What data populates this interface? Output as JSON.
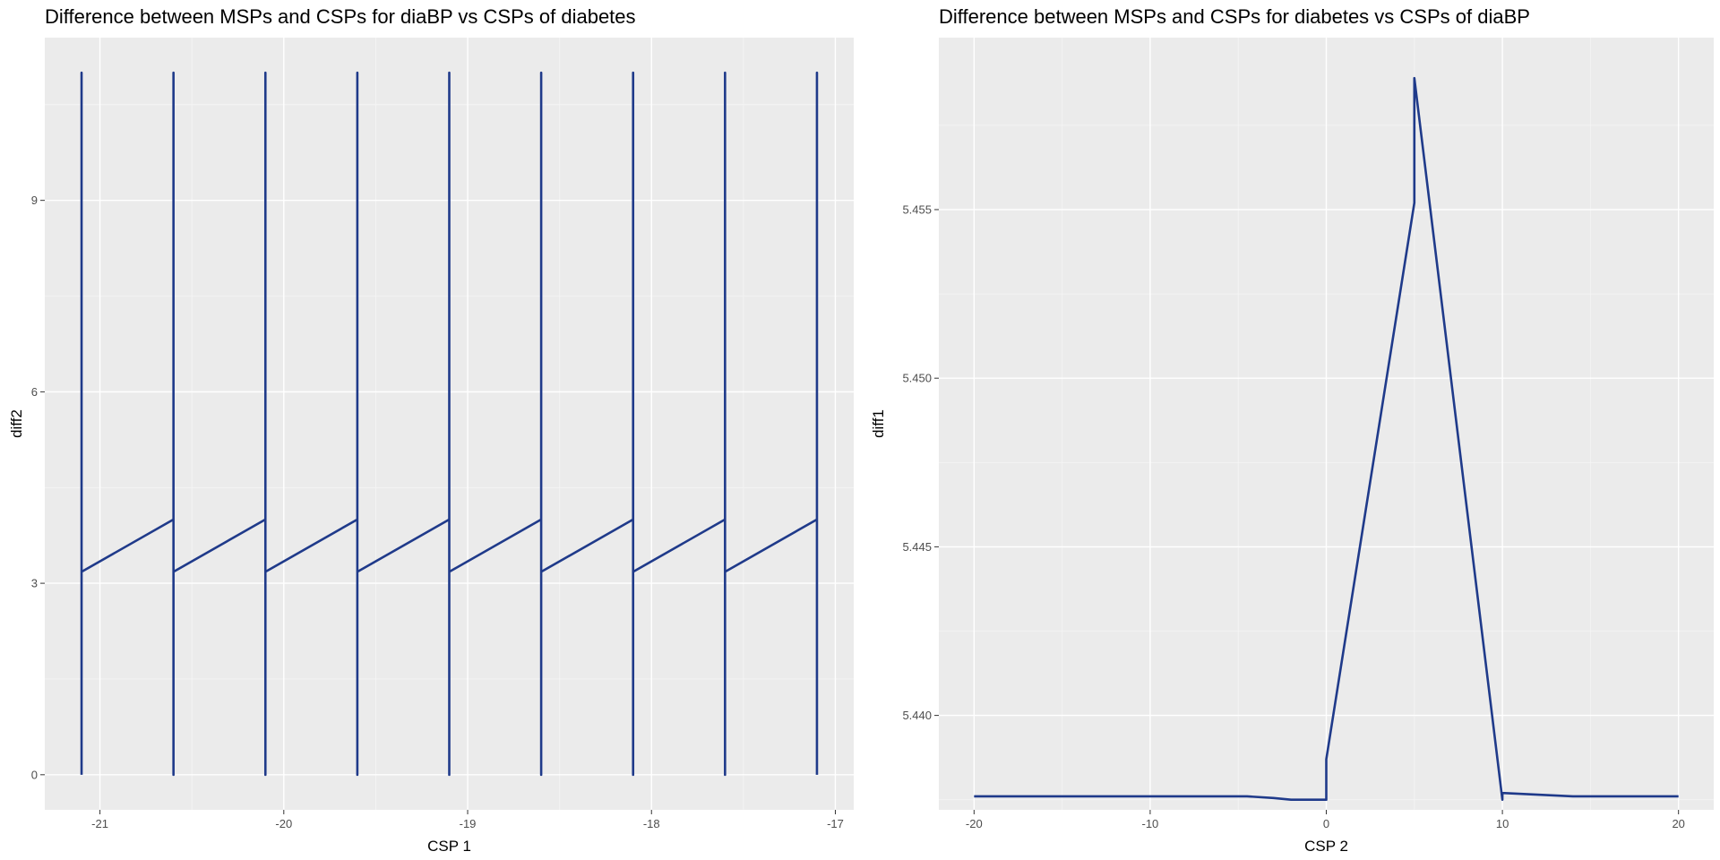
{
  "chart_data": [
    {
      "type": "line",
      "title": "Difference between MSPs and CSPs for diaBP vs CSPs of diabetes",
      "xlabel": "CSP 1",
      "ylabel": "diff2",
      "xlim": [
        -21.3,
        -16.9
      ],
      "ylim": [
        -0.55,
        11.55
      ],
      "xticks": [
        -21,
        -20,
        -19,
        -18,
        -17
      ],
      "xtick_labels": [
        "-21",
        "-20",
        "-19",
        "-18",
        "-17"
      ],
      "yticks": [
        0,
        3,
        6,
        9
      ],
      "ytick_labels": [
        "0",
        "3",
        "6",
        "9"
      ],
      "grid": true,
      "line_color": "#1f3a8a",
      "series": [
        {
          "x": [
            -21.1,
            -21.1,
            -21.1,
            -20.6,
            -20.6,
            -20.6,
            -20.6,
            -20.1,
            -20.1,
            -20.1,
            -20.1,
            -19.6,
            -19.6,
            -19.6,
            -19.6,
            -19.1,
            -19.1,
            -19.1,
            -19.1,
            -18.6,
            -18.6,
            -18.6,
            -18.6,
            -18.1,
            -18.1,
            -18.1,
            -18.1,
            -17.6,
            -17.6,
            -17.6,
            -17.6,
            -17.1,
            -17.1,
            -17.1
          ],
          "y": [
            0,
            11,
            3.18,
            4.0,
            11,
            0,
            3.18,
            4.0,
            11,
            0,
            3.18,
            4.0,
            11,
            0,
            3.18,
            4.0,
            11,
            0,
            3.18,
            4.0,
            11,
            0,
            3.18,
            4.0,
            11,
            0,
            3.18,
            4.0,
            11,
            0,
            3.18,
            4.0,
            11,
            0
          ]
        }
      ]
    },
    {
      "type": "line",
      "title": "Difference between MSPs and CSPs for diabetes vs CSPs of diaBP",
      "xlabel": "CSP 2",
      "ylabel": "diff1",
      "xlim": [
        -22,
        22
      ],
      "ylim": [
        5.4372,
        5.4601
      ],
      "xticks": [
        -20,
        -10,
        0,
        10,
        20
      ],
      "xtick_labels": [
        "-20",
        "-10",
        "0",
        "10",
        "20"
      ],
      "yticks": [
        5.44,
        5.445,
        5.45,
        5.455
      ],
      "ytick_labels": [
        "5.440",
        "5.445",
        "5.450",
        "5.455"
      ],
      "grid": true,
      "line_color": "#1f3a8a",
      "series": [
        {
          "x": [
            -20,
            -15,
            -10,
            -5,
            -4.5,
            -3,
            -2,
            -1,
            0,
            0,
            0,
            5,
            5,
            5,
            10,
            10,
            10,
            12,
            14,
            16,
            18,
            20
          ],
          "y": [
            5.4376,
            5.4376,
            5.4376,
            5.4376,
            5.4376,
            5.43755,
            5.4375,
            5.4375,
            5.4375,
            5.4375,
            5.4387,
            5.4552,
            5.4589,
            5.4589,
            5.4375,
            5.4377,
            5.4377,
            5.43765,
            5.4376,
            5.4376,
            5.4376,
            5.4376
          ]
        }
      ]
    }
  ]
}
